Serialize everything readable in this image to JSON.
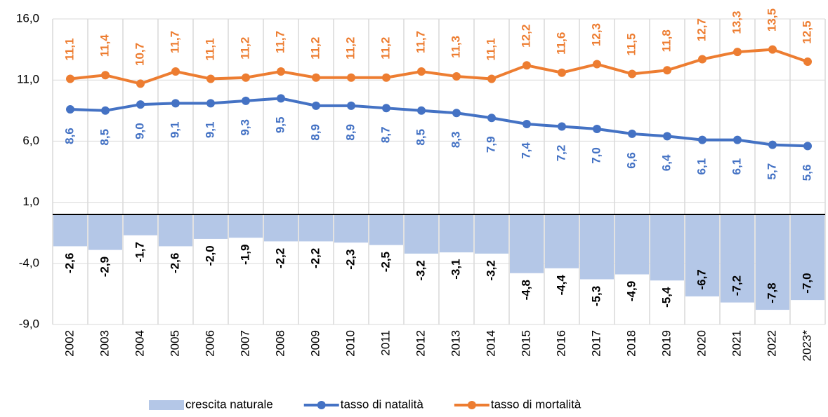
{
  "chart_data": {
    "type": "bar-line",
    "categories": [
      "2002",
      "2003",
      "2004",
      "2005",
      "2006",
      "2007",
      "2008",
      "2009",
      "2010",
      "2011",
      "2012",
      "2013",
      "2014",
      "2015",
      "2016",
      "2017",
      "2018",
      "2019",
      "2020",
      "2021",
      "2022",
      "2023*"
    ],
    "series": [
      {
        "name": "crescita naturale",
        "type": "bar",
        "color": "#b4c7e7",
        "values": [
          -2.6,
          -2.9,
          -1.7,
          -2.6,
          -2.0,
          -1.9,
          -2.2,
          -2.2,
          -2.3,
          -2.5,
          -3.2,
          -3.1,
          -3.2,
          -4.8,
          -4.4,
          -5.3,
          -4.9,
          -5.4,
          -6.7,
          -7.2,
          -7.8,
          -7.0
        ],
        "value_labels": [
          "-2,6",
          "-2,9",
          "-1,7",
          "-2,6",
          "-2,0",
          "-1,9",
          "-2,2",
          "-2,2",
          "-2,3",
          "-2,5",
          "-3,2",
          "-3,1",
          "-3,2",
          "-4,8",
          "-4,4",
          "-5,3",
          "-4,9",
          "-5,4",
          "-6,7",
          "-7,2",
          "-7,8",
          "-7,0"
        ]
      },
      {
        "name": "tasso di natalità",
        "type": "line",
        "color": "#4472c4",
        "values": [
          8.6,
          8.5,
          9.0,
          9.1,
          9.1,
          9.3,
          9.5,
          8.9,
          8.9,
          8.7,
          8.5,
          8.3,
          7.9,
          7.4,
          7.2,
          7.0,
          6.6,
          6.4,
          6.1,
          6.1,
          5.7,
          5.6
        ],
        "value_labels": [
          "8,6",
          "8,5",
          "9,0",
          "9,1",
          "9,1",
          "9,3",
          "9,5",
          "8,9",
          "8,9",
          "8,7",
          "8,5",
          "8,3",
          "7,9",
          "7,4",
          "7,2",
          "7,0",
          "6,6",
          "6,4",
          "6,1",
          "6,1",
          "5,7",
          "5,6"
        ]
      },
      {
        "name": "tasso di mortalità",
        "type": "line",
        "color": "#ed7d31",
        "values": [
          11.1,
          11.4,
          10.7,
          11.7,
          11.1,
          11.2,
          11.7,
          11.2,
          11.2,
          11.2,
          11.7,
          11.3,
          11.1,
          12.2,
          11.6,
          12.3,
          11.5,
          11.8,
          12.7,
          13.3,
          13.5,
          12.5
        ],
        "value_labels": [
          "11,1",
          "11,4",
          "10,7",
          "11,7",
          "11,1",
          "11,2",
          "11,7",
          "11,2",
          "11,2",
          "11,2",
          "11,7",
          "11,3",
          "11,1",
          "12,2",
          "11,6",
          "12,3",
          "11,5",
          "11,8",
          "12,7",
          "13,3",
          "13,5",
          "12,5"
        ]
      }
    ],
    "ylim": [
      -9,
      16
    ],
    "yticks": [
      {
        "value": -9,
        "label": "-9,0"
      },
      {
        "value": -4,
        "label": "-4,0"
      },
      {
        "value": 1,
        "label": "1,0"
      },
      {
        "value": 6,
        "label": "6,0"
      },
      {
        "value": 11,
        "label": "11,0"
      },
      {
        "value": 16,
        "label": "16,0"
      }
    ],
    "grid": true,
    "legend": "bottom"
  }
}
